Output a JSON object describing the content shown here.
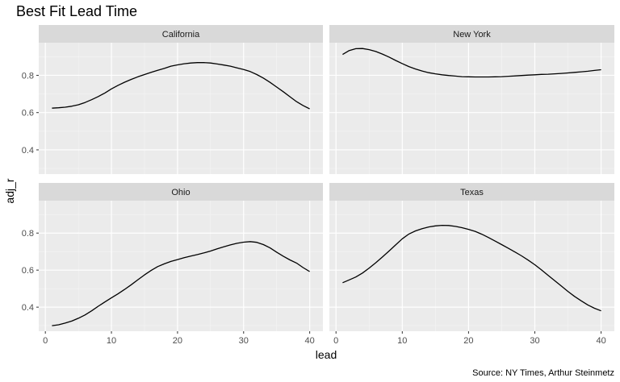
{
  "chart_data": {
    "type": "line",
    "title": "Best Fit Lead Time",
    "xlabel": "lead",
    "ylabel": "adj_r",
    "caption": "Source: NY Times, Arthur Steinmetz",
    "xlim": [
      -1,
      42
    ],
    "ylim": [
      0.27,
      0.975
    ],
    "x_ticks": [
      0,
      10,
      20,
      30,
      40
    ],
    "y_ticks": [
      0.4,
      0.6,
      0.8
    ],
    "x_tick_labels": [
      "0",
      "10",
      "20",
      "30",
      "40"
    ],
    "y_tick_labels": [
      "0.4",
      "0.6",
      "0.8"
    ],
    "x_minor": [
      5,
      15,
      25,
      35
    ],
    "y_minor": [
      0.3,
      0.5,
      0.7,
      0.9
    ],
    "grid": true,
    "facet_layout": "2x2",
    "x": [
      1,
      2,
      3,
      4,
      5,
      6,
      7,
      8,
      9,
      10,
      11,
      12,
      13,
      14,
      15,
      16,
      17,
      18,
      19,
      20,
      21,
      22,
      23,
      24,
      25,
      26,
      27,
      28,
      29,
      30,
      31,
      32,
      33,
      34,
      35,
      36,
      37,
      38,
      39,
      40
    ],
    "panels": [
      {
        "facet": "California",
        "values": [
          0.624,
          0.626,
          0.629,
          0.634,
          0.642,
          0.654,
          0.669,
          0.686,
          0.705,
          0.727,
          0.746,
          0.763,
          0.778,
          0.792,
          0.804,
          0.816,
          0.827,
          0.837,
          0.849,
          0.856,
          0.862,
          0.866,
          0.868,
          0.868,
          0.866,
          0.861,
          0.855,
          0.849,
          0.84,
          0.831,
          0.82,
          0.804,
          0.785,
          0.762,
          0.737,
          0.712,
          0.685,
          0.659,
          0.638,
          0.62
        ]
      },
      {
        "facet": "New York",
        "values": [
          0.912,
          0.933,
          0.943,
          0.944,
          0.938,
          0.928,
          0.914,
          0.898,
          0.88,
          0.863,
          0.847,
          0.834,
          0.823,
          0.814,
          0.808,
          0.803,
          0.799,
          0.796,
          0.793,
          0.792,
          0.791,
          0.791,
          0.791,
          0.792,
          0.793,
          0.795,
          0.797,
          0.799,
          0.801,
          0.803,
          0.805,
          0.806,
          0.808,
          0.81,
          0.813,
          0.816,
          0.819,
          0.822,
          0.826,
          0.83
        ]
      },
      {
        "facet": "Ohio",
        "values": [
          0.3,
          0.305,
          0.314,
          0.325,
          0.34,
          0.358,
          0.38,
          0.405,
          0.428,
          0.45,
          0.472,
          0.496,
          0.521,
          0.548,
          0.574,
          0.598,
          0.619,
          0.634,
          0.647,
          0.657,
          0.667,
          0.676,
          0.684,
          0.693,
          0.703,
          0.715,
          0.726,
          0.736,
          0.745,
          0.751,
          0.754,
          0.75,
          0.738,
          0.72,
          0.697,
          0.675,
          0.655,
          0.638,
          0.614,
          0.592
        ]
      },
      {
        "facet": "Texas",
        "values": [
          0.532,
          0.547,
          0.563,
          0.584,
          0.611,
          0.64,
          0.671,
          0.703,
          0.736,
          0.769,
          0.795,
          0.812,
          0.824,
          0.833,
          0.839,
          0.842,
          0.841,
          0.836,
          0.829,
          0.82,
          0.809,
          0.794,
          0.776,
          0.757,
          0.738,
          0.718,
          0.698,
          0.677,
          0.654,
          0.629,
          0.601,
          0.572,
          0.543,
          0.514,
          0.485,
          0.458,
          0.434,
          0.412,
          0.394,
          0.38
        ]
      }
    ]
  }
}
